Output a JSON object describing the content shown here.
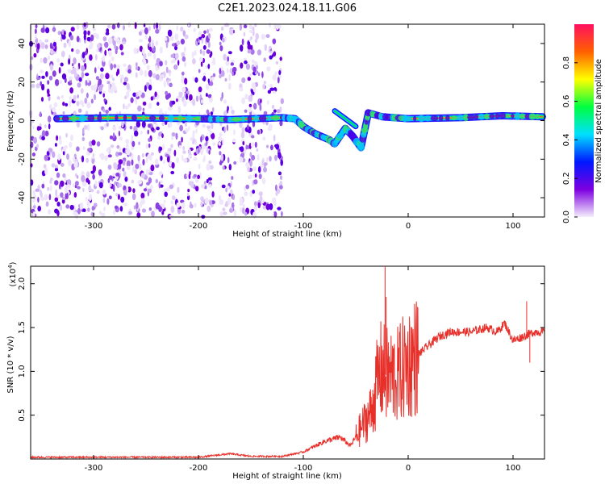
{
  "title": "C2E1.2023.024.18.11.G06",
  "chart_data": [
    {
      "type": "heatmap",
      "xlabel": "Height of straight line (km)",
      "ylabel": "Frequency (Hz)",
      "xlim": [
        -360,
        130
      ],
      "ylim": [
        -50,
        50
      ],
      "xticks": [
        -300,
        -200,
        -100,
        0,
        100
      ],
      "yticks": [
        -40,
        -20,
        0,
        20,
        40
      ],
      "colorbar": {
        "label": "Normalized spectral amplitude",
        "range": [
          0,
          1
        ],
        "ticks": [
          0.0,
          0.2,
          0.4,
          0.6,
          0.8
        ],
        "colors": [
          "#f4eefc",
          "#7d00e0",
          "#0018ff",
          "#00e0ff",
          "#00ff40",
          "#ffff00",
          "#ff6000",
          "#ff1060"
        ]
      },
      "background_noise_x_ranges": [
        [
          -360,
          -275
        ],
        [
          -275,
          -185
        ],
        [
          -180,
          -165
        ],
        [
          -160,
          -120
        ]
      ],
      "signal_track": [
        {
          "x": -335,
          "y": 1
        },
        {
          "x": -270,
          "y": 1.5
        },
        {
          "x": -200,
          "y": 1
        },
        {
          "x": -170,
          "y": 0.5
        },
        {
          "x": -120,
          "y": 1.5
        },
        {
          "x": -108,
          "y": 1
        },
        {
          "x": -100,
          "y": -3
        },
        {
          "x": -88,
          "y": -7
        },
        {
          "x": -75,
          "y": -10
        },
        {
          "x": -70,
          "y": -12
        },
        {
          "x": -60,
          "y": -4
        },
        {
          "x": -53,
          "y": -8
        },
        {
          "x": -45,
          "y": -14
        },
        {
          "x": -38,
          "y": 4
        },
        {
          "x": -25,
          "y": 2
        },
        {
          "x": 0,
          "y": 1
        },
        {
          "x": 50,
          "y": 1.5
        },
        {
          "x": 90,
          "y": 2.5
        },
        {
          "x": 128,
          "y": 2
        }
      ],
      "upper_branch": [
        {
          "x": -70,
          "y": 5
        },
        {
          "x": -60,
          "y": 1
        },
        {
          "x": -50,
          "y": -3
        }
      ]
    },
    {
      "type": "line",
      "xlabel": "Height of straight line (km)",
      "ylabel": "SNR (10 * v/v)",
      "y_multiplier": "(x10",
      "y_multiplier_exp": "4",
      "y_multiplier_close": ")",
      "xlim": [
        -360,
        130
      ],
      "ylim": [
        0,
        2.2
      ],
      "xticks": [
        -300,
        -200,
        -100,
        0,
        100
      ],
      "yticks": [
        0.5,
        1.0,
        1.5,
        2.0
      ],
      "line_color": "#e8302a",
      "envelope": [
        {
          "x": -360,
          "y": 0.02
        },
        {
          "x": -200,
          "y": 0.02
        },
        {
          "x": -170,
          "y": 0.06
        },
        {
          "x": -150,
          "y": 0.03
        },
        {
          "x": -120,
          "y": 0.03
        },
        {
          "x": -100,
          "y": 0.08
        },
        {
          "x": -80,
          "y": 0.2
        },
        {
          "x": -65,
          "y": 0.25
        },
        {
          "x": -55,
          "y": 0.15
        },
        {
          "x": -45,
          "y": 0.35
        },
        {
          "x": -35,
          "y": 0.55
        },
        {
          "x": -30,
          "y": 0.85
        },
        {
          "x": -26,
          "y": 1.0
        },
        {
          "x": -20,
          "y": 0.95
        },
        {
          "x": -10,
          "y": 0.95
        },
        {
          "x": 0,
          "y": 1.1
        },
        {
          "x": 10,
          "y": 1.2
        },
        {
          "x": 20,
          "y": 1.3
        },
        {
          "x": 30,
          "y": 1.4
        },
        {
          "x": 40,
          "y": 1.45
        },
        {
          "x": 60,
          "y": 1.45
        },
        {
          "x": 75,
          "y": 1.5
        },
        {
          "x": 85,
          "y": 1.45
        },
        {
          "x": 92,
          "y": 1.55
        },
        {
          "x": 100,
          "y": 1.35
        },
        {
          "x": 110,
          "y": 1.4
        },
        {
          "x": 120,
          "y": 1.45
        },
        {
          "x": 130,
          "y": 1.45
        }
      ],
      "spikes": [
        {
          "x": -22,
          "y": 2.2
        },
        {
          "x": -21,
          "y": 1.85
        },
        {
          "x": 113,
          "y": 1.8
        },
        {
          "x": 116,
          "y": 1.1
        }
      ]
    }
  ]
}
